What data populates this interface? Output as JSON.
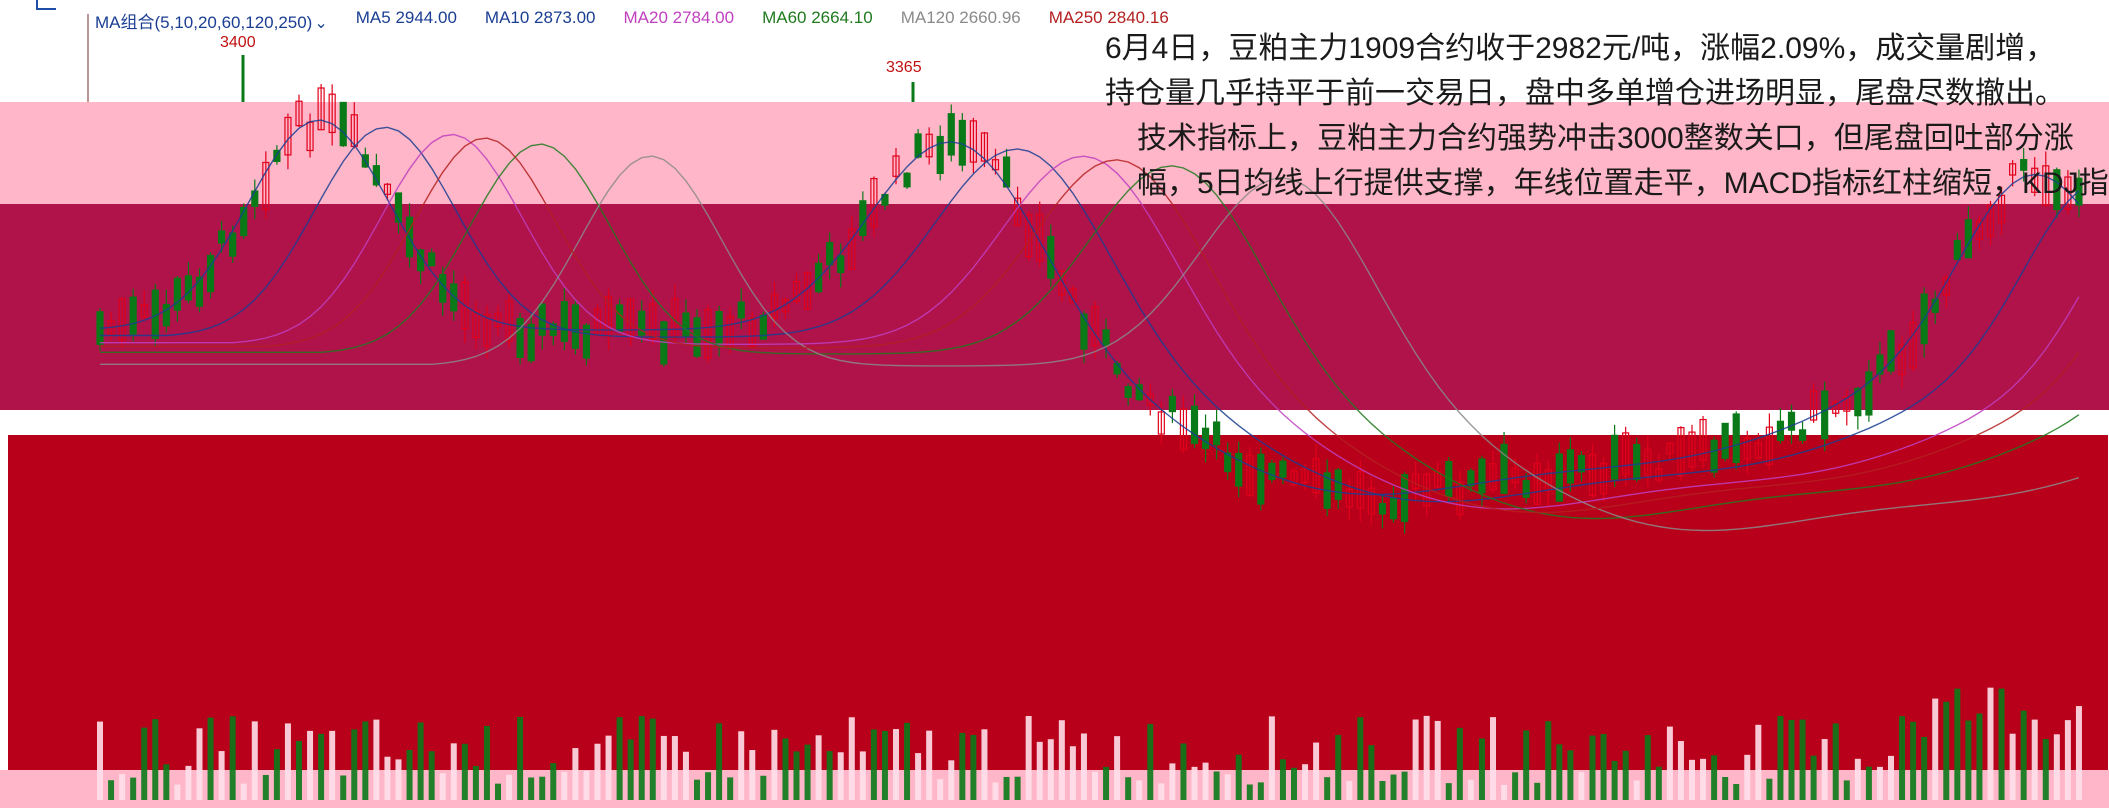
{
  "ma_bar": {
    "combo_label": "MA组合(5,10,20,60,120,250)",
    "items": [
      {
        "label": "MA5 2944.00",
        "color": "#1a3e92"
      },
      {
        "label": "MA10 2873.00",
        "color": "#1a3e92"
      },
      {
        "label": "MA20 2784.00",
        "color": "#c040c0"
      },
      {
        "label": "MA60 2664.10",
        "color": "#1f7a1f"
      },
      {
        "label": "MA120 2660.96",
        "color": "#8a8a8a"
      },
      {
        "label": "MA250 2840.16",
        "color": "#b42020"
      }
    ]
  },
  "annotation": {
    "line1": "6月4日，豆粕主力1909合约收于2982元/吨，涨幅2.09%，成交量剧增，",
    "line2": "持仓量几乎持平于前一交易日，盘中多单增仓进场明显，尾盘尽数撤出。",
    "line3": "技术指标上，豆粕主力合约强势冲击3000整数关口，但尾盘回吐部分涨",
    "line4": "幅，5日均线上行提供支撑，年线位置走平，MACD指标红柱缩短，KDJ指"
  },
  "colors": {
    "background_band": "#ffb6c8",
    "main_band": "#b0124a",
    "deep_band": "#b8001a",
    "up": "#e1001a",
    "down": "#0a7a18"
  },
  "chart_data": {
    "type": "candlestick",
    "peak_labels": [
      {
        "label": "3400",
        "value": 3400
      },
      {
        "label": "3365",
        "value": 3365
      }
    ],
    "moving_averages": [
      {
        "name": "MA5",
        "value": 2944.0
      },
      {
        "name": "MA10",
        "value": 2873.0
      },
      {
        "name": "MA20",
        "value": 2784.0
      },
      {
        "name": "MA60",
        "value": 2664.1
      },
      {
        "name": "MA120",
        "value": 2660.96
      },
      {
        "name": "MA250",
        "value": 2840.16
      }
    ]
  }
}
